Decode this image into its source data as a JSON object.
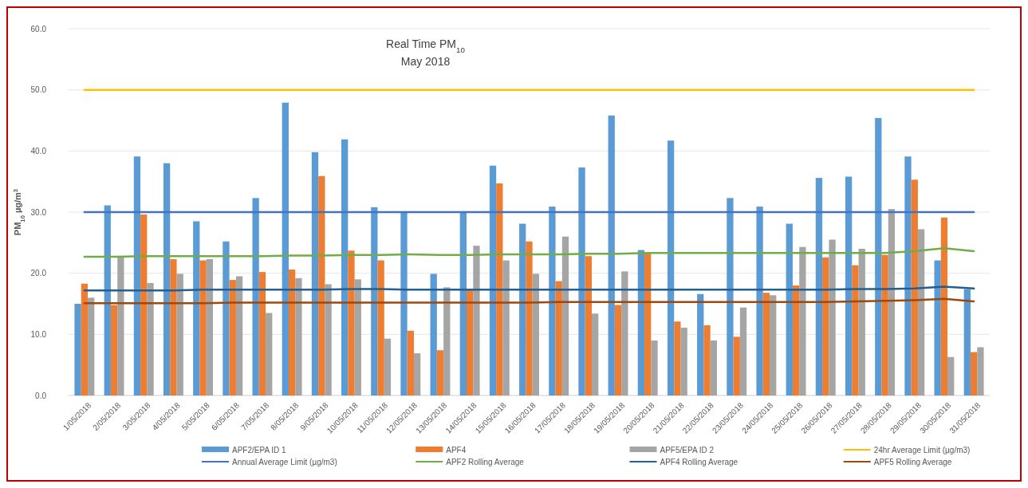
{
  "chart_data": {
    "type": "bar",
    "title": "Real Time PM$_{10}$",
    "subtitle": "May 2018",
    "ylabel": "PM$_{10}$ µg/m$^{3}$",
    "categories": [
      "1/05/2018",
      "2/05/2018",
      "3/05/2018",
      "4/05/2018",
      "5/05/2018",
      "6/05/2018",
      "7/05/2018",
      "8/05/2018",
      "9/05/2018",
      "10/05/2018",
      "11/05/2018",
      "12/05/2018",
      "13/05/2018",
      "14/05/2018",
      "15/05/2018",
      "16/05/2018",
      "17/05/2018",
      "18/05/2018",
      "19/05/2018",
      "20/05/2018",
      "21/05/2018",
      "22/05/2018",
      "23/05/2018",
      "24/05/2018",
      "25/05/2018",
      "26/05/2018",
      "27/05/2018",
      "28/05/2018",
      "29/05/2018",
      "30/05/2018",
      "31/05/2018"
    ],
    "series": [
      {
        "name": "APF2/EPA ID 1",
        "color": "#5b9bd5",
        "values": [
          15.0,
          31.1,
          39.1,
          38.0,
          28.5,
          25.2,
          32.3,
          47.9,
          39.8,
          41.9,
          30.8,
          30.0,
          19.9,
          30.0,
          37.6,
          28.1,
          30.9,
          37.3,
          45.8,
          23.8,
          41.7,
          16.6,
          32.3,
          30.9,
          28.1,
          35.6,
          35.8,
          45.4,
          39.1,
          22.1,
          17.4
        ]
      },
      {
        "name": "APF4",
        "color": "#ed7d31",
        "values": [
          18.3,
          14.8,
          29.6,
          22.3,
          22.1,
          18.9,
          20.2,
          20.6,
          35.9,
          23.7,
          22.1,
          10.6,
          7.4,
          17.4,
          34.7,
          25.2,
          18.7,
          22.8,
          14.8,
          23.2,
          12.1,
          11.5,
          9.6,
          16.8,
          18.0,
          22.6,
          21.3,
          23.0,
          35.3,
          29.1,
          7.1
        ]
      },
      {
        "name": "APF5/EPA ID 2",
        "color": "#a5a5a5",
        "values": [
          16.0,
          22.8,
          18.4,
          19.9,
          22.3,
          19.5,
          13.5,
          19.2,
          18.2,
          19.0,
          9.3,
          6.9,
          17.7,
          24.5,
          22.1,
          19.9,
          26.0,
          13.4,
          20.3,
          9.0,
          11.1,
          9.0,
          14.4,
          16.4,
          24.3,
          25.5,
          24.0,
          30.5,
          27.2,
          6.3,
          7.9
        ]
      },
      {
        "name": "24hr Average Limit (µg/m3)",
        "type": "line",
        "color": "#ffc000",
        "values": [
          50,
          50,
          50,
          50,
          50,
          50,
          50,
          50,
          50,
          50,
          50,
          50,
          50,
          50,
          50,
          50,
          50,
          50,
          50,
          50,
          50,
          50,
          50,
          50,
          50,
          50,
          50,
          50,
          50,
          50,
          50
        ]
      },
      {
        "name": "Annual Average Limit (µg/m3)",
        "type": "line",
        "color": "#4472c4",
        "values": [
          30,
          30,
          30,
          30,
          30,
          30,
          30,
          30,
          30,
          30,
          30,
          30,
          30,
          30,
          30,
          30,
          30,
          30,
          30,
          30,
          30,
          30,
          30,
          30,
          30,
          30,
          30,
          30,
          30,
          30,
          30
        ]
      },
      {
        "name": "APF2 Rolling Average",
        "type": "line",
        "color": "#70ad47",
        "values": [
          22.7,
          22.7,
          22.8,
          22.8,
          22.8,
          22.8,
          22.8,
          22.9,
          22.9,
          23.0,
          23.0,
          23.1,
          23.0,
          23.0,
          23.1,
          23.1,
          23.1,
          23.2,
          23.2,
          23.3,
          23.3,
          23.3,
          23.3,
          23.3,
          23.3,
          23.3,
          23.3,
          23.3,
          23.6,
          24.1,
          23.6
        ]
      },
      {
        "name": "APF4 Rolling Average",
        "type": "line",
        "color": "#255e91",
        "values": [
          17.2,
          17.2,
          17.2,
          17.2,
          17.3,
          17.3,
          17.3,
          17.3,
          17.3,
          17.4,
          17.4,
          17.3,
          17.3,
          17.3,
          17.3,
          17.3,
          17.3,
          17.3,
          17.3,
          17.3,
          17.3,
          17.3,
          17.3,
          17.3,
          17.3,
          17.3,
          17.4,
          17.4,
          17.5,
          17.8,
          17.5
        ]
      },
      {
        "name": "APF5 Rolling Average",
        "type": "line",
        "color": "#9e480e",
        "values": [
          15.1,
          15.1,
          15.1,
          15.1,
          15.1,
          15.2,
          15.2,
          15.2,
          15.2,
          15.2,
          15.2,
          15.2,
          15.2,
          15.2,
          15.2,
          15.2,
          15.3,
          15.3,
          15.3,
          15.3,
          15.3,
          15.3,
          15.3,
          15.3,
          15.3,
          15.3,
          15.4,
          15.5,
          15.6,
          15.8,
          15.4
        ]
      }
    ],
    "ylim": [
      0,
      60
    ],
    "yticks": [
      {
        "value": 0,
        "label": "0.0"
      },
      {
        "value": 10,
        "label": "10.0"
      },
      {
        "value": 20,
        "label": "20.0"
      },
      {
        "value": 30,
        "label": "30.0"
      },
      {
        "value": 40,
        "label": "40.0"
      },
      {
        "value": 50,
        "label": "50.0"
      },
      {
        "value": 60,
        "label": "60.0"
      }
    ],
    "grid": "y",
    "legend": "bottom"
  }
}
